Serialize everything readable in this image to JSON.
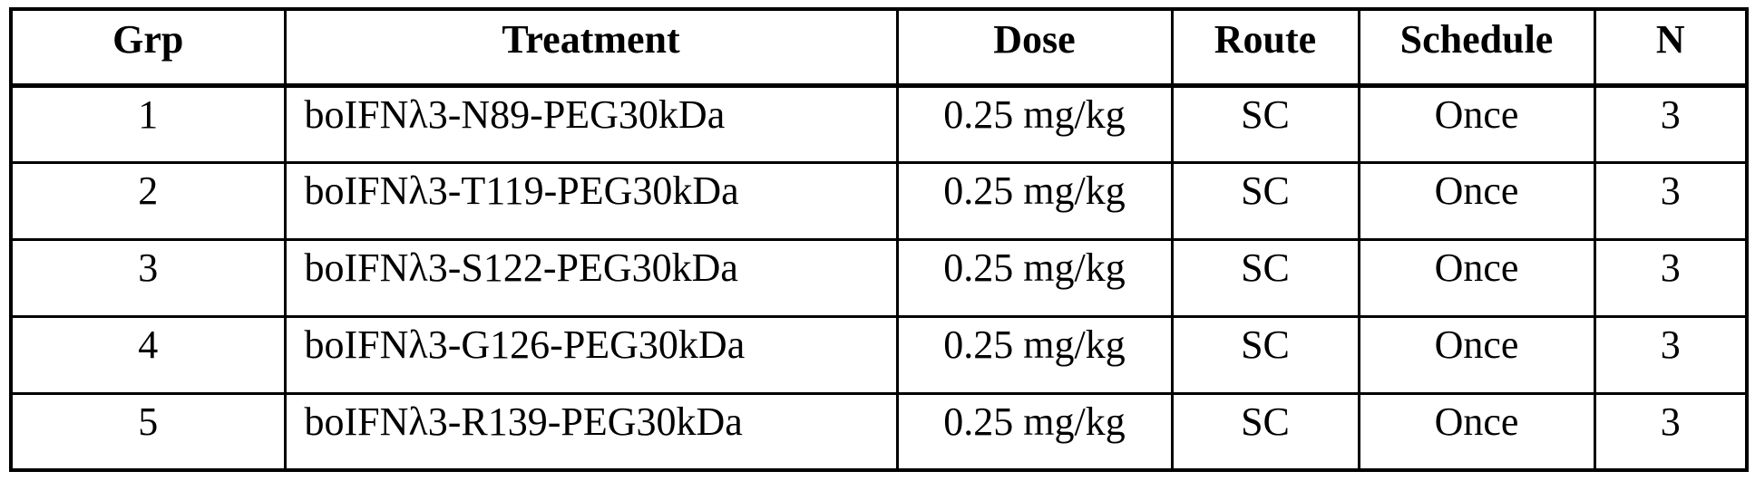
{
  "colors": {
    "border": "#000000",
    "background": "#ffffff",
    "text": "#000000"
  },
  "table": {
    "columns": [
      {
        "key": "grp",
        "label": "Grp"
      },
      {
        "key": "treatment",
        "label": "Treatment"
      },
      {
        "key": "dose",
        "label": "Dose"
      },
      {
        "key": "route",
        "label": "Route"
      },
      {
        "key": "schedule",
        "label": "Schedule"
      },
      {
        "key": "n",
        "label": "N"
      }
    ],
    "rows": [
      [
        "1",
        "boIFNλ3-N89-PEG30kDa",
        "0.25 mg/kg",
        "SC",
        "Once",
        "3"
      ],
      [
        "2",
        "boIFNλ3-T119-PEG30kDa",
        "0.25 mg/kg",
        "SC",
        "Once",
        "3"
      ],
      [
        "3",
        "boIFNλ3-S122-PEG30kDa",
        "0.25 mg/kg",
        "SC",
        "Once",
        "3"
      ],
      [
        "4",
        "boIFNλ3-G126-PEG30kDa",
        "0.25 mg/kg",
        "SC",
        "Once",
        "3"
      ],
      [
        "5",
        "boIFNλ3-R139-PEG30kDa",
        "0.25 mg/kg",
        "SC",
        "Once",
        "3"
      ]
    ]
  }
}
